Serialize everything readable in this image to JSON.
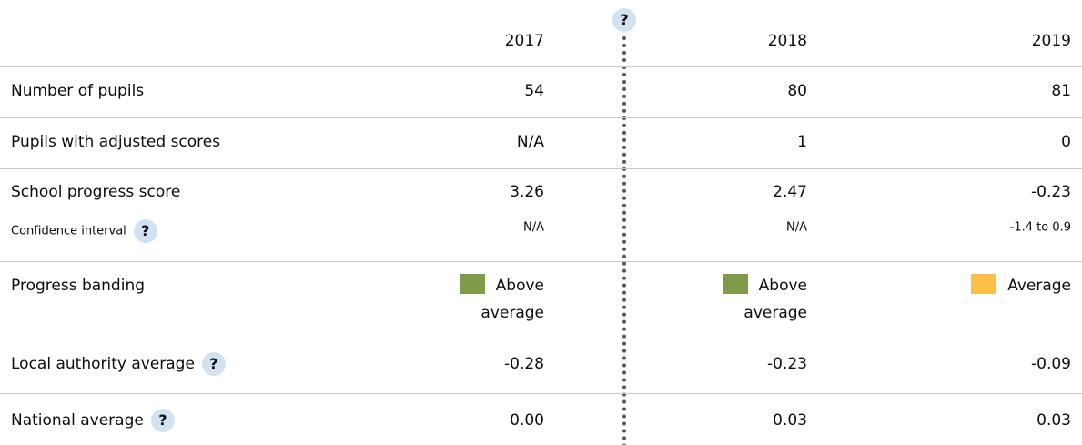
{
  "help_icon": "?",
  "header": {
    "columns": [
      "2017",
      "2018",
      "2019"
    ]
  },
  "rows": [
    {
      "label": "Number of pupils",
      "values": [
        "54",
        "80",
        "81"
      ]
    },
    {
      "label": "Pupils with adjusted scores",
      "values": [
        "N/A",
        "1",
        "0"
      ]
    },
    {
      "label": "School progress score",
      "values": [
        "3.26",
        "2.47",
        "-0.23"
      ]
    },
    {
      "label": "Confidence interval",
      "help": true,
      "small": true,
      "values": [
        "N/A",
        "N/A",
        "-1.4 to 0.9"
      ]
    },
    {
      "label": "Progress banding",
      "banding": [
        {
          "text": "Above average",
          "color": "#7f9a48"
        },
        {
          "text": "Above average",
          "color": "#7f9a48"
        },
        {
          "text": "Average",
          "color": "#ffbf47"
        }
      ]
    },
    {
      "label": "Local authority average",
      "help": true,
      "values": [
        "-0.28",
        "-0.23",
        "-0.09"
      ]
    },
    {
      "label": "National average",
      "help": true,
      "values": [
        "0.00",
        "0.03",
        "0.03"
      ]
    }
  ]
}
